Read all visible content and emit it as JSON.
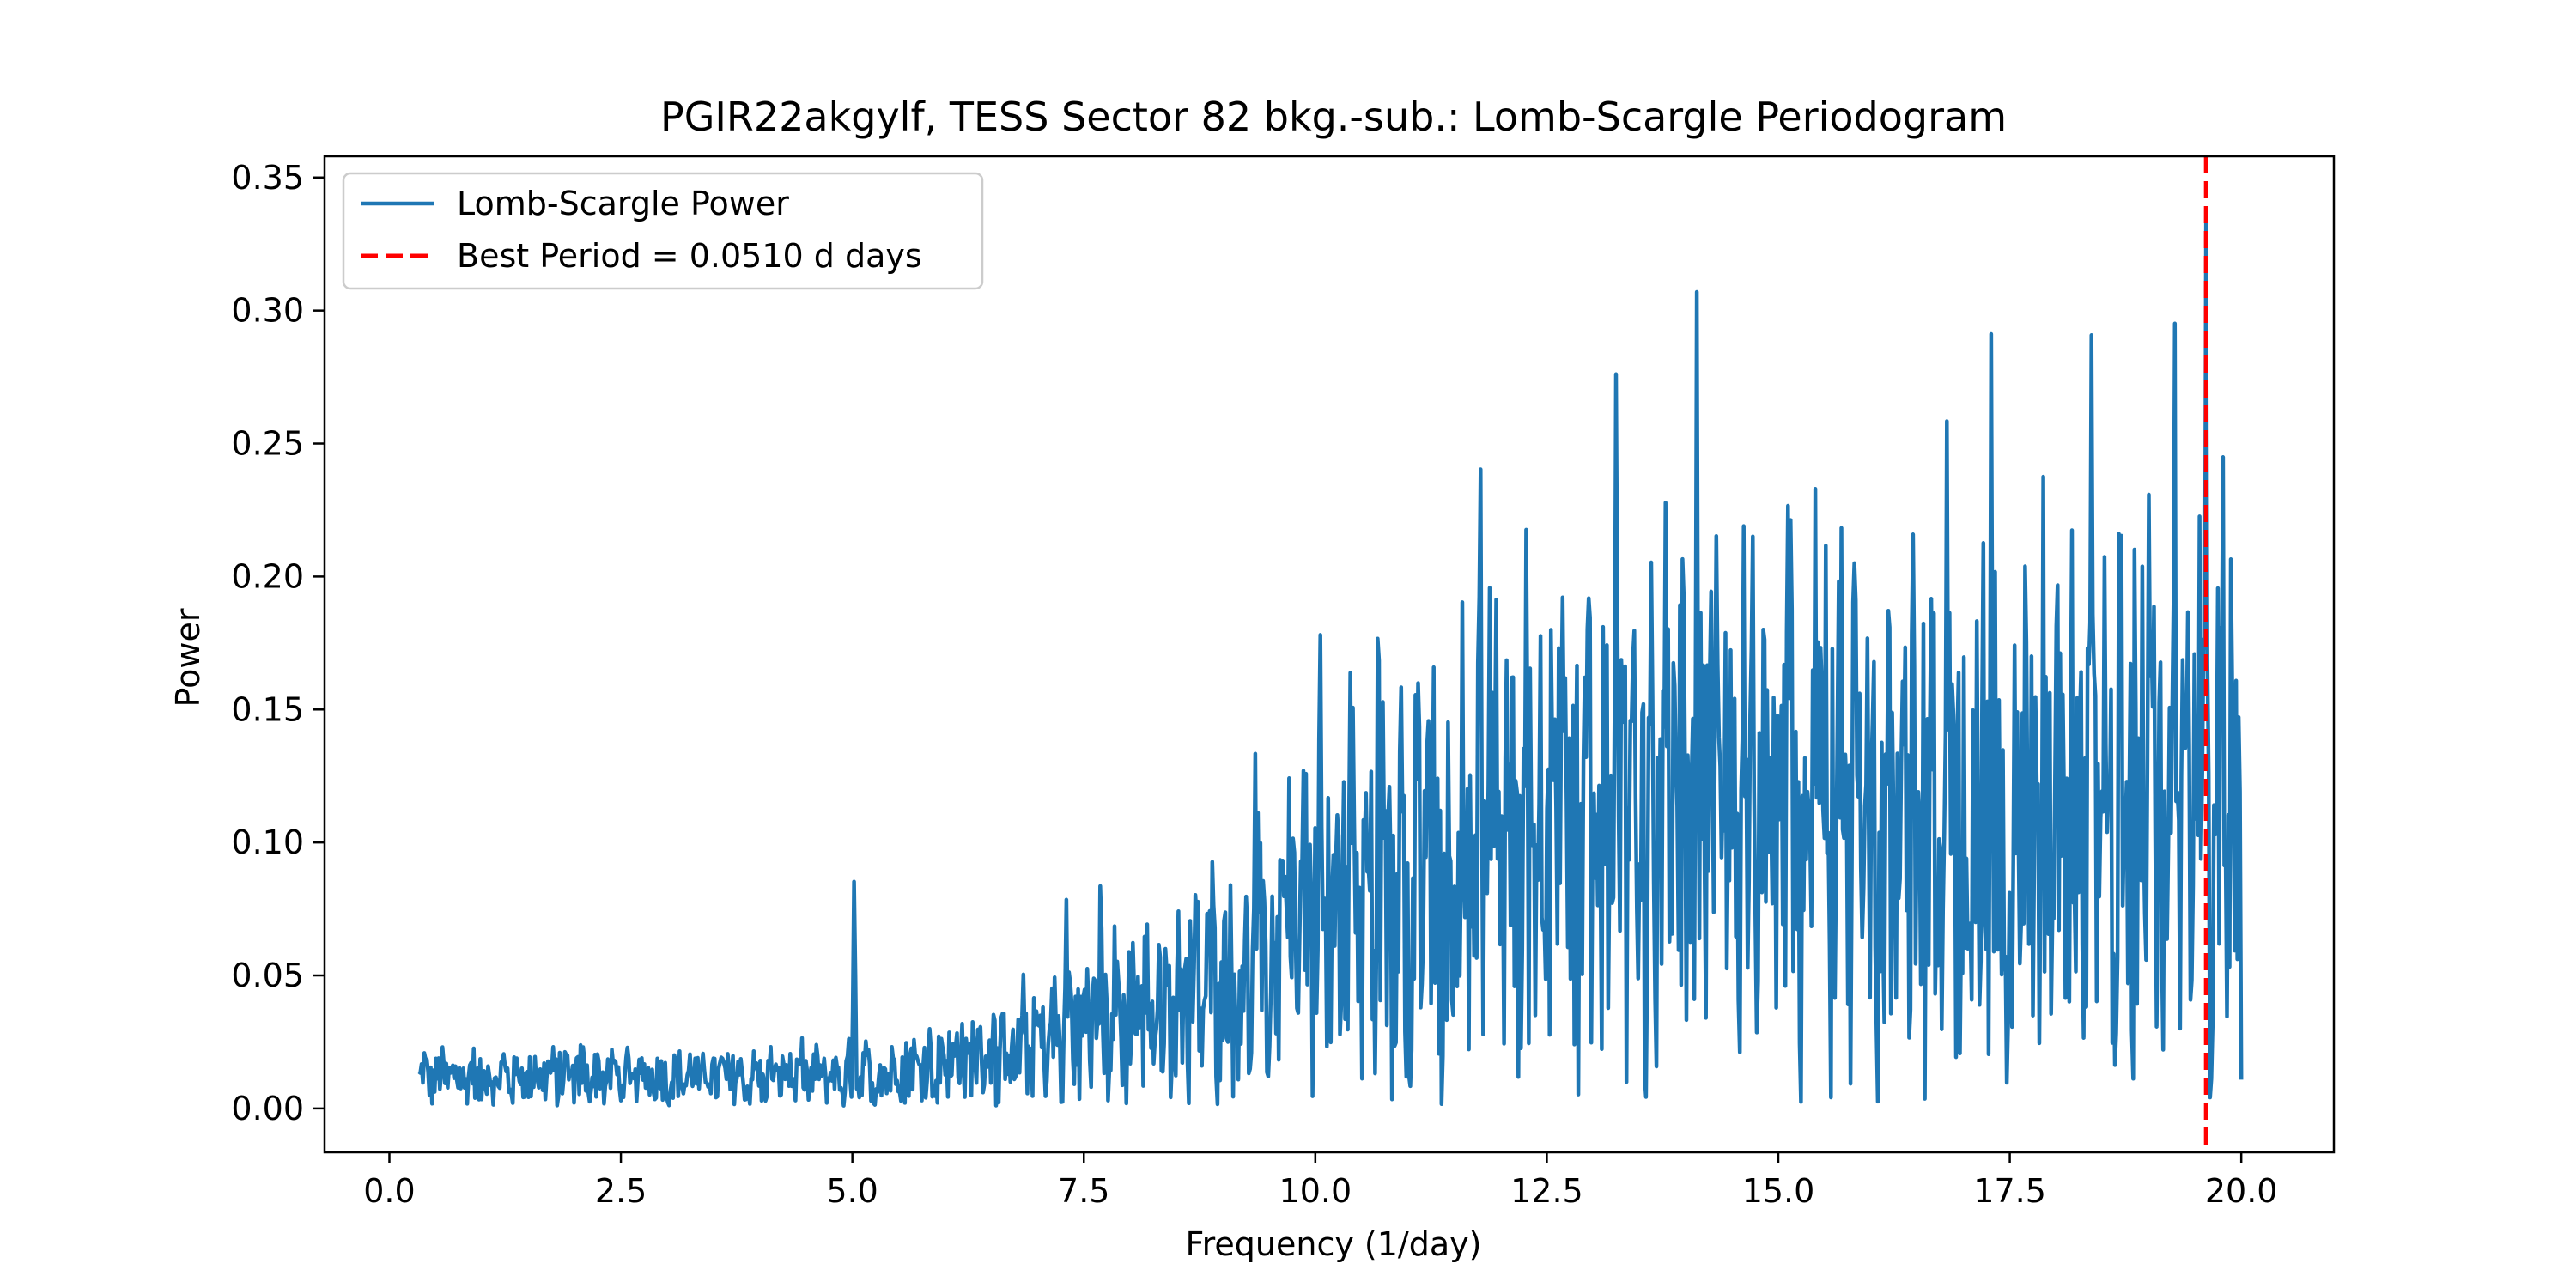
{
  "chart_data": {
    "type": "line",
    "title": "PGIR22akgylf, TESS Sector 82 bkg.-sub.: Lomb-Scargle Periodogram",
    "xlabel": "Frequency (1/day)",
    "ylabel": "Power",
    "xlim": [
      -0.7,
      21.0
    ],
    "ylim": [
      -0.0165,
      0.358
    ],
    "xticks": [
      0.0,
      2.5,
      5.0,
      7.5,
      10.0,
      12.5,
      15.0,
      17.5,
      20.0
    ],
    "xtick_labels": [
      "0.0",
      "2.5",
      "5.0",
      "7.5",
      "10.0",
      "12.5",
      "15.0",
      "17.5",
      "20.0"
    ],
    "yticks": [
      0.0,
      0.05,
      0.1,
      0.15,
      0.2,
      0.25,
      0.3,
      0.35
    ],
    "ytick_labels": [
      "0.00",
      "0.05",
      "0.10",
      "0.15",
      "0.20",
      "0.25",
      "0.30",
      "0.35"
    ],
    "grid": false,
    "legend_position": "upper-left",
    "series": [
      {
        "name": "Lomb-Scargle Power",
        "color": "#1f77b4",
        "x_range": [
          0.32,
          20.0
        ],
        "samples": 1400,
        "peaks": [
          {
            "x": 5.02,
            "y": 0.086
          },
          {
            "x": 7.31,
            "y": 0.079
          },
          {
            "x": 7.68,
            "y": 0.086
          },
          {
            "x": 9.35,
            "y": 0.134
          },
          {
            "x": 10.05,
            "y": 0.191
          },
          {
            "x": 10.38,
            "y": 0.166
          },
          {
            "x": 10.68,
            "y": 0.205
          },
          {
            "x": 11.78,
            "y": 0.26
          },
          {
            "x": 11.95,
            "y": 0.2
          },
          {
            "x": 12.28,
            "y": 0.224
          },
          {
            "x": 12.68,
            "y": 0.155
          },
          {
            "x": 13.25,
            "y": 0.281
          },
          {
            "x": 13.4,
            "y": 0.149
          },
          {
            "x": 13.78,
            "y": 0.232
          },
          {
            "x": 14.12,
            "y": 0.307
          },
          {
            "x": 14.72,
            "y": 0.233
          },
          {
            "x": 15.1,
            "y": 0.244
          },
          {
            "x": 15.4,
            "y": 0.233
          },
          {
            "x": 15.82,
            "y": 0.208
          },
          {
            "x": 16.45,
            "y": 0.236
          },
          {
            "x": 16.82,
            "y": 0.259
          },
          {
            "x": 17.3,
            "y": 0.292
          },
          {
            "x": 18.38,
            "y": 0.296
          },
          {
            "x": 19.0,
            "y": 0.232
          },
          {
            "x": 19.28,
            "y": 0.302
          },
          {
            "x": 19.62,
            "y": 0.338
          },
          {
            "x": 19.8,
            "y": 0.253
          }
        ]
      },
      {
        "name": "Best Period = 0.0510 d days",
        "color": "#ff0000",
        "style": "dashed",
        "x": 19.62
      }
    ]
  }
}
